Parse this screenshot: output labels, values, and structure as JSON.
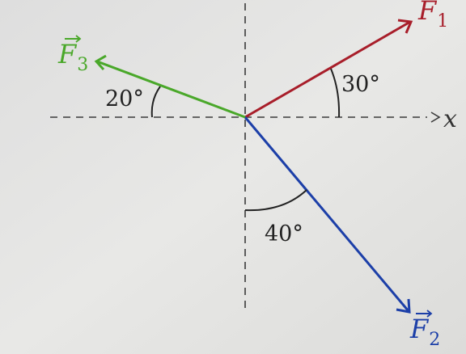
{
  "colors": {
    "background": "#e4e4e2",
    "axis": "#3a3a3a",
    "f1": "#a81e2a",
    "f2": "#1c3fa8",
    "f3": "#4aa82a",
    "angle_text": "#222222"
  },
  "vectors": {
    "f1": {
      "letter": "F",
      "subscript": "1",
      "angle_label": "30°"
    },
    "f2": {
      "letter": "F",
      "subscript": "2",
      "angle_label": "40°"
    },
    "f3": {
      "letter": "F",
      "subscript": "3",
      "angle_label": "20°"
    }
  },
  "axis": {
    "x_label": "x"
  }
}
